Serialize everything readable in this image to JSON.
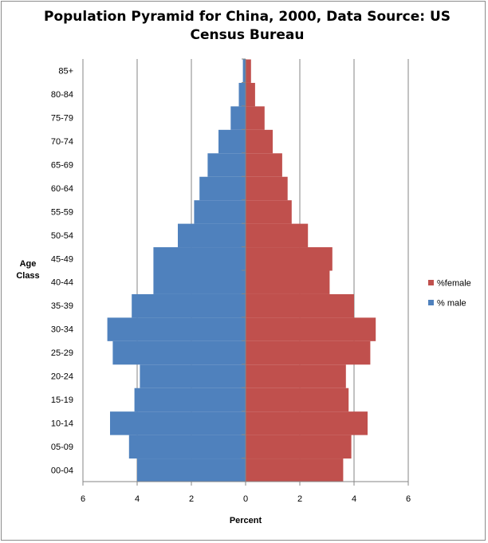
{
  "chart_data": {
    "type": "bar",
    "orientation": "horizontal-pyramid",
    "title": "Population Pyramid for China, 2000, Data Source: US Census Bureau",
    "xlabel": "Percent",
    "ylabel": "Age Class",
    "xlim": [
      -6,
      6
    ],
    "xticks": [
      -6,
      -4,
      -2,
      0,
      2,
      4,
      6
    ],
    "xtick_labels": [
      "6",
      "4",
      "2",
      "0",
      "2",
      "4",
      "6"
    ],
    "grid": "vertical major gridlines",
    "legend_position": "right",
    "categories": [
      "00-04",
      "05-09",
      "10-14",
      "15-19",
      "20-24",
      "25-29",
      "30-34",
      "35-39",
      "40-44",
      "45-49",
      "50-54",
      "55-59",
      "60-64",
      "65-69",
      "70-74",
      "75-79",
      "80-84",
      "85+"
    ],
    "series": [
      {
        "name": "%female",
        "color": "#c0504d",
        "values": [
          3.6,
          3.9,
          4.5,
          3.8,
          3.7,
          4.6,
          4.8,
          4.0,
          3.1,
          3.2,
          2.3,
          1.7,
          1.55,
          1.35,
          1.0,
          0.7,
          0.35,
          0.2
        ]
      },
      {
        "name": "% male",
        "color": "#4f81bd",
        "values": [
          -4.0,
          -4.3,
          -5.0,
          -4.1,
          -3.9,
          -4.9,
          -5.1,
          -4.2,
          -3.4,
          -3.4,
          -2.5,
          -1.9,
          -1.7,
          -1.4,
          -1.0,
          -0.55,
          -0.25,
          -0.1
        ]
      }
    ]
  }
}
